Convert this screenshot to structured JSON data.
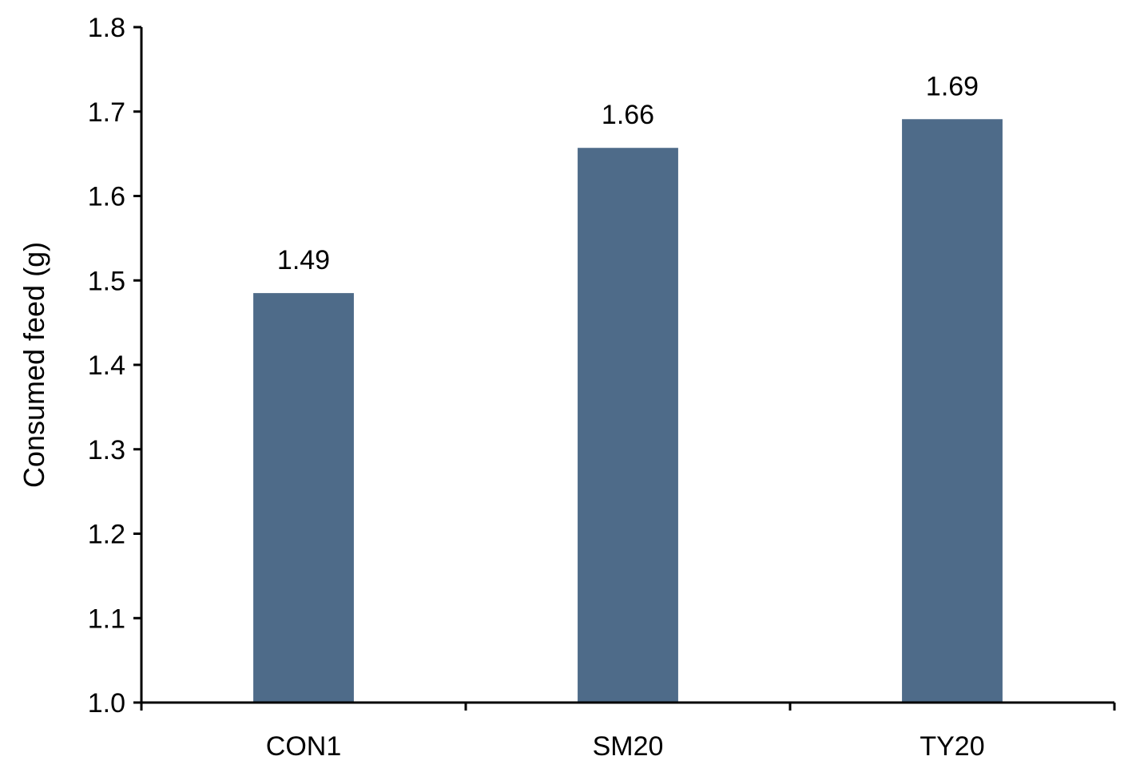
{
  "chart_data": {
    "type": "bar",
    "categories": [
      "CON1",
      "SM20",
      "TY20"
    ],
    "values": [
      1.485,
      1.657,
      1.691
    ],
    "data_labels": [
      "1.49",
      "1.66",
      "1.69"
    ],
    "title": "",
    "xlabel": "",
    "ylabel": "Consumed feed (g)",
    "ylim": [
      1.0,
      1.8
    ],
    "yticks": [
      "1.0",
      "1.1",
      "1.2",
      "1.3",
      "1.4",
      "1.5",
      "1.6",
      "1.7",
      "1.8"
    ],
    "grid": false,
    "legend": "none",
    "bar_color": "#4e6b89"
  }
}
